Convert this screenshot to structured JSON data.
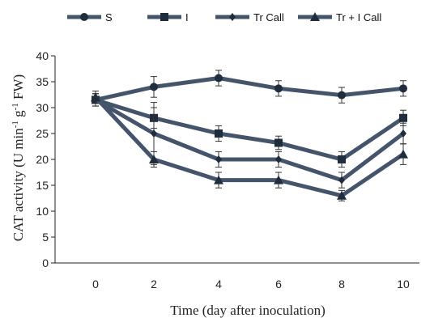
{
  "chart_data": {
    "type": "line",
    "title": "",
    "xlabel": "Time (day after inoculation)",
    "ylabel": "CAT activity (U min",
    "ylabel_sup1": "-1",
    "ylabel_mid": " g",
    "ylabel_sup2": "-1",
    "ylabel_end": " FW)",
    "x": [
      0,
      2,
      4,
      6,
      8,
      10
    ],
    "x_tick_labels": [
      "0",
      "2",
      "4",
      "6",
      "8",
      "10"
    ],
    "ylim": [
      0,
      40
    ],
    "y_ticks": [
      0,
      5,
      10,
      15,
      20,
      25,
      30,
      35,
      40
    ],
    "y_tick_labels": [
      "0",
      "5",
      "10",
      "15",
      "20",
      "25",
      "30",
      "35",
      "40"
    ],
    "grid": false,
    "legend_position": "top",
    "line_color": "#44546a",
    "series": [
      {
        "name": "S",
        "marker": "circle",
        "values": [
          31.5,
          34,
          35.7,
          33.7,
          32.4,
          33.7
        ],
        "errors": [
          1.2,
          2.0,
          1.5,
          1.5,
          1.5,
          1.5
        ]
      },
      {
        "name": "I",
        "marker": "square",
        "values": [
          31.5,
          28,
          25,
          23.2,
          20,
          28
        ],
        "errors": [
          1.2,
          2.0,
          1.5,
          1.3,
          1.5,
          1.5
        ]
      },
      {
        "name": "Tr Call",
        "marker": "diamond",
        "values": [
          31.5,
          25,
          20,
          20,
          16,
          25
        ],
        "errors": [
          1.2,
          6.0,
          1.5,
          1.5,
          1.5,
          2.0
        ]
      },
      {
        "name": "Tr + I Call",
        "marker": "triangle",
        "values": [
          32,
          20,
          16,
          16,
          13,
          21
        ],
        "errors": [
          1.2,
          1.5,
          1.5,
          1.5,
          1.0,
          2.0
        ]
      }
    ]
  }
}
